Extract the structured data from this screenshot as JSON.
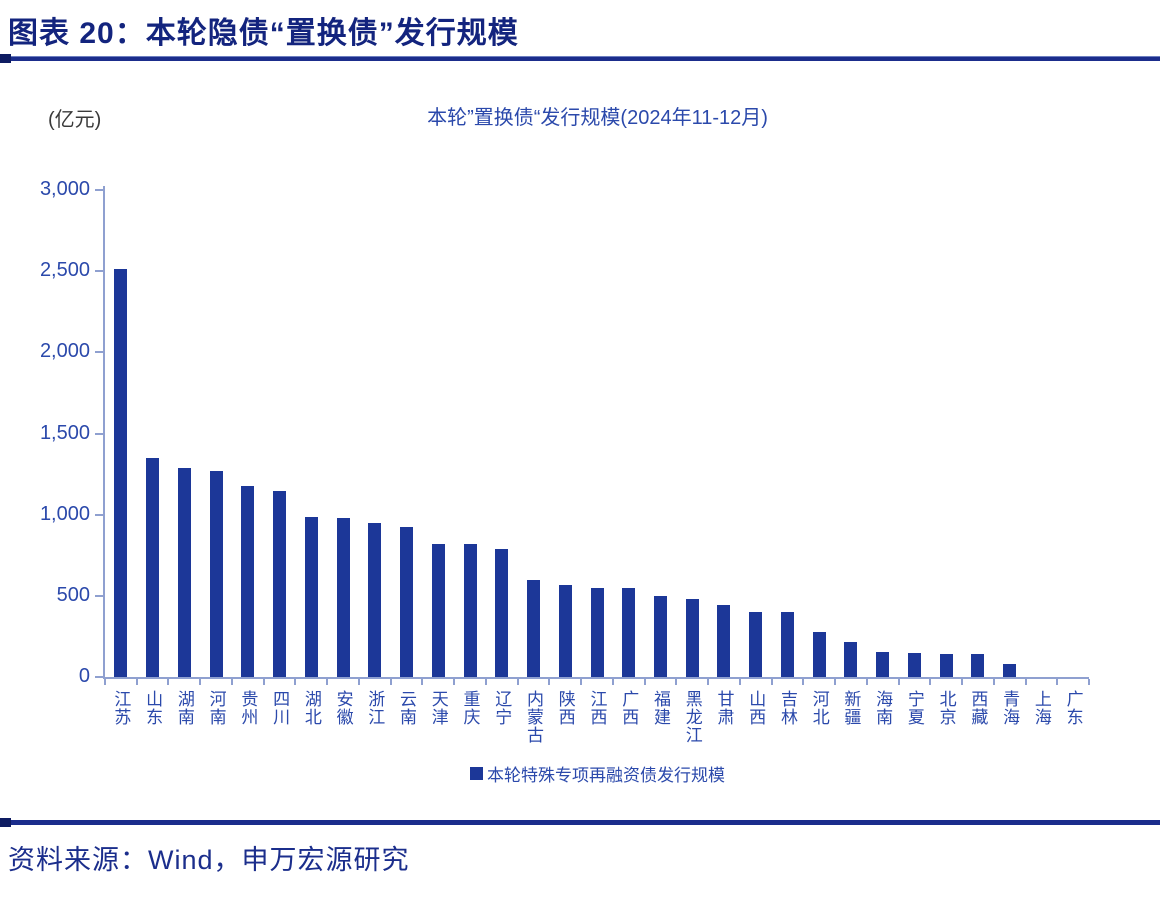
{
  "header": {
    "title": "图表 20：本轮隐债“置换债”发行规模"
  },
  "chart_data": {
    "type": "bar",
    "title": "本轮”置换债“发行规模(2024年11-12月)",
    "unit_label": "(亿元)",
    "legend": "本轮特殊专项再融资债发行规模",
    "legend_position": "bottom-center",
    "grid": "off",
    "categories": [
      "江苏",
      "山东",
      "湖南",
      "河南",
      "贵州",
      "四川",
      "湖北",
      "安徽",
      "浙江",
      "云南",
      "天津",
      "重庆",
      "辽宁",
      "内蒙古",
      "陕西",
      "江西",
      "广西",
      "福建",
      "黑龙江",
      "甘肃",
      "山西",
      "吉林",
      "河北",
      "新疆",
      "海南",
      "宁夏",
      "北京",
      "西藏",
      "青海",
      "上海",
      "广东"
    ],
    "values": [
      2511,
      1350,
      1288,
      1270,
      1176,
      1145,
      983,
      978,
      950,
      925,
      820,
      817,
      790,
      600,
      565,
      551,
      546,
      502,
      482,
      441,
      401,
      399,
      278,
      218,
      151,
      148,
      144,
      140,
      78,
      0,
      0
    ],
    "ylim": [
      0,
      3000
    ],
    "ytick_values": [
      0,
      500,
      1000,
      1500,
      2000,
      2500,
      3000
    ],
    "ytick_labels": [
      "0",
      "500",
      "1,000",
      "1,500",
      "2,000",
      "2,500",
      "3,000"
    ],
    "bar_color": "#1c3798",
    "axis_color": "#8fa0d0",
    "tick_label_color": "#2b49ab"
  },
  "footer": {
    "source": "资料来源：Wind，申万宏源研究"
  }
}
